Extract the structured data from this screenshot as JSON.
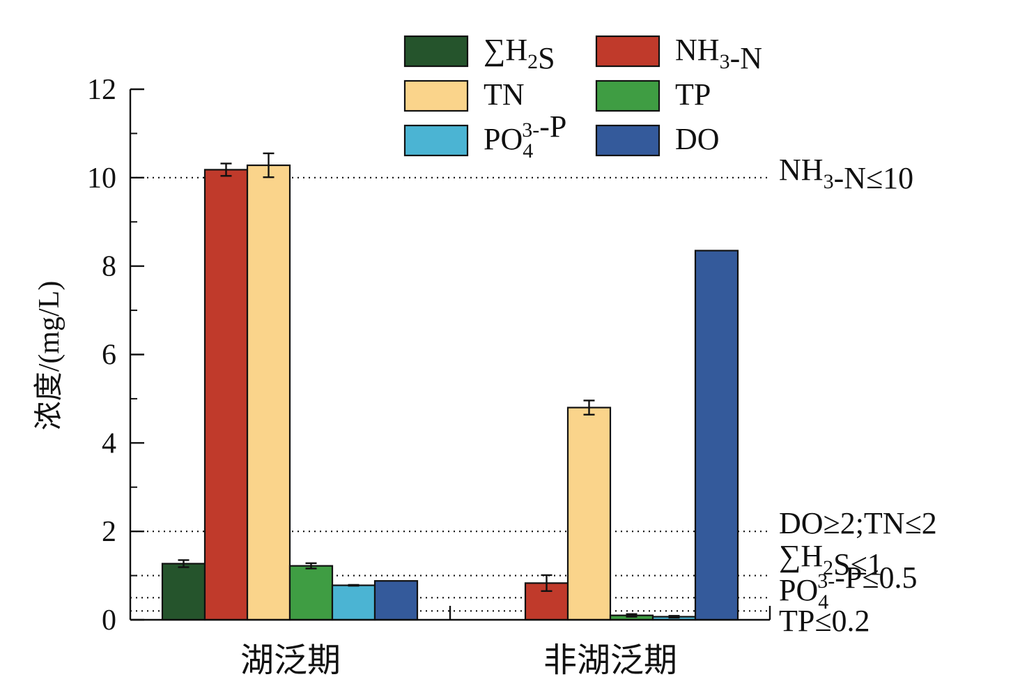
{
  "chart_data": {
    "type": "bar",
    "ylabel": "浓度/(mg/L)",
    "ylim": [
      0,
      12
    ],
    "yticks": [
      0,
      2,
      4,
      6,
      8,
      10,
      12
    ],
    "categories": [
      "湖泛期",
      "非湖泛期"
    ],
    "series": [
      {
        "name": "∑H2S",
        "color": "#25542c",
        "values": [
          1.27,
          null
        ],
        "errors": [
          0.08,
          null
        ]
      },
      {
        "name": "NH3-N",
        "color": "#c03a2b",
        "values": [
          10.18,
          0.83
        ],
        "errors": [
          0.14,
          0.18
        ]
      },
      {
        "name": "TN",
        "color": "#fad48b",
        "values": [
          10.28,
          4.8
        ],
        "errors": [
          0.27,
          0.16
        ]
      },
      {
        "name": "TP",
        "color": "#3f9d43",
        "values": [
          1.22,
          0.1
        ],
        "errors": [
          0.06,
          0.03
        ]
      },
      {
        "name": "PO43--P",
        "color": "#4bb4d3",
        "values": [
          0.78,
          0.07
        ],
        "errors": [
          0.01,
          0.02
        ]
      },
      {
        "name": "DO",
        "color": "#345a9b",
        "values": [
          0.88,
          8.35
        ],
        "errors": [
          null,
          null
        ]
      }
    ],
    "thresholds": [
      {
        "value": 10,
        "label": "NH3-N≤10"
      },
      {
        "value": 2,
        "label": "DO≥2;TN≤2"
      },
      {
        "value": 1,
        "label": "∑H2S≤1"
      },
      {
        "value": 0.5,
        "label": "PO43--P≤0.5"
      },
      {
        "value": 0.2,
        "label": "TP≤0.2"
      }
    ],
    "legend_position": "top"
  }
}
